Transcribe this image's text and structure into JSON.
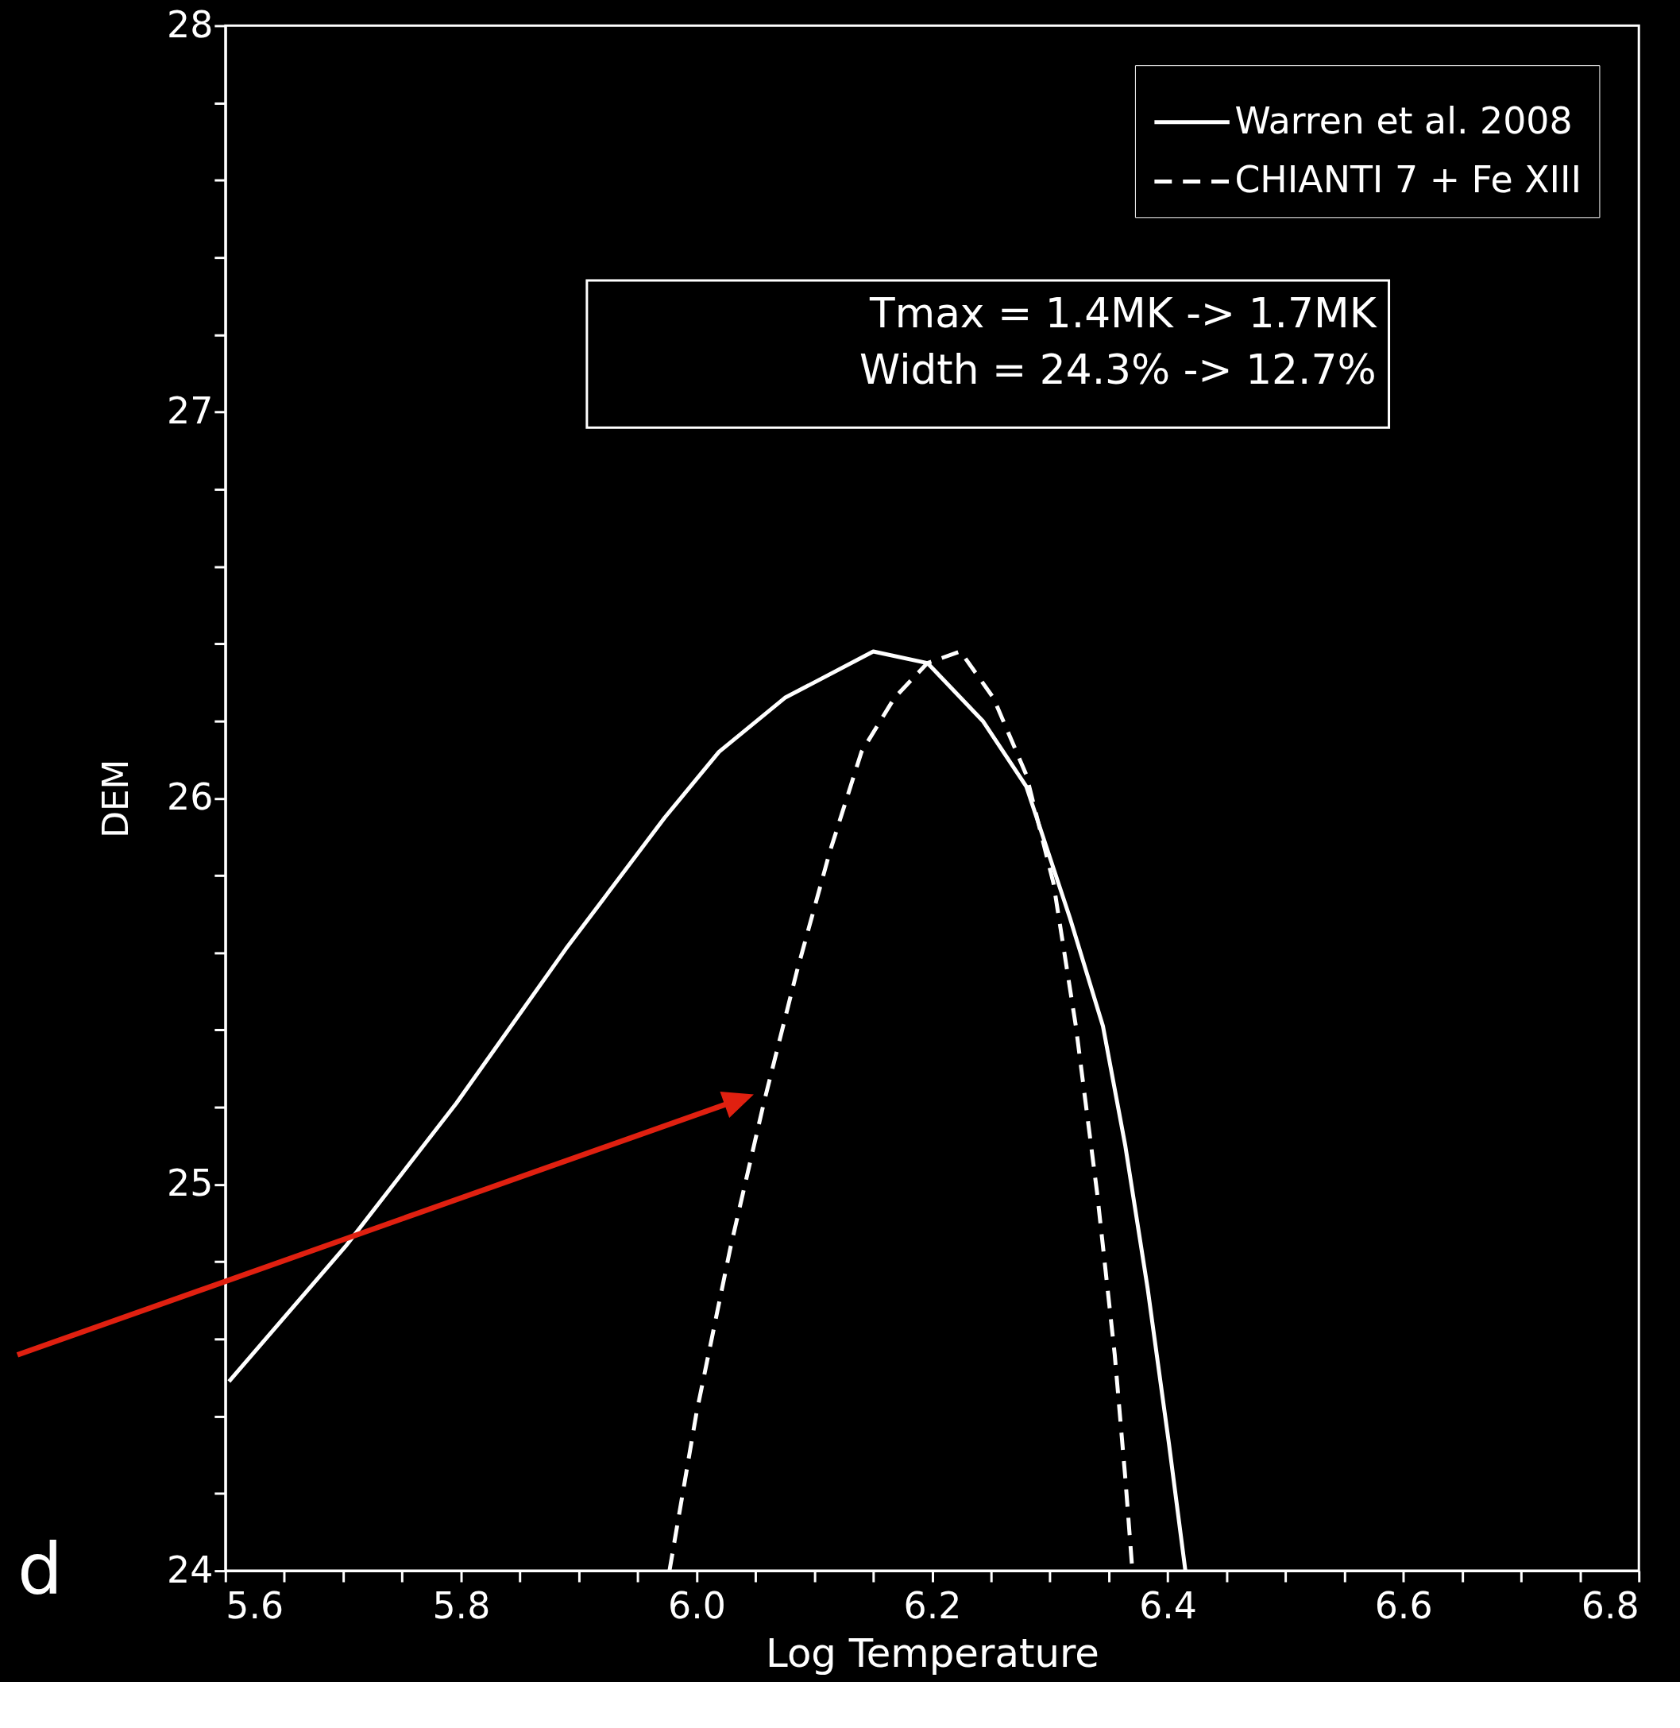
{
  "chart_data": {
    "type": "line",
    "xlabel": "Log Temperature",
    "ylabel": "DEM",
    "xlim": [
      5.6,
      6.8
    ],
    "ylim": [
      24,
      28
    ],
    "xticks": [
      {
        "value": 5.6,
        "label": "5.6"
      },
      {
        "value": 5.65,
        "label": null
      },
      {
        "value": 5.7,
        "label": null
      },
      {
        "value": 5.75,
        "label": null
      },
      {
        "value": 5.8,
        "label": "5.8"
      },
      {
        "value": 5.85,
        "label": null
      },
      {
        "value": 5.9,
        "label": null
      },
      {
        "value": 5.95,
        "label": null
      },
      {
        "value": 6.0,
        "label": "6.0"
      },
      {
        "value": 6.05,
        "label": null
      },
      {
        "value": 6.1,
        "label": null
      },
      {
        "value": 6.15,
        "label": null
      },
      {
        "value": 6.2,
        "label": "6.2"
      },
      {
        "value": 6.25,
        "label": null
      },
      {
        "value": 6.3,
        "label": null
      },
      {
        "value": 6.35,
        "label": null
      },
      {
        "value": 6.4,
        "label": "6.4"
      },
      {
        "value": 6.45,
        "label": null
      },
      {
        "value": 6.5,
        "label": null
      },
      {
        "value": 6.55,
        "label": null
      },
      {
        "value": 6.6,
        "label": "6.6"
      },
      {
        "value": 6.65,
        "label": null
      },
      {
        "value": 6.7,
        "label": null
      },
      {
        "value": 6.75,
        "label": null
      },
      {
        "value": 6.8,
        "label": "6.8"
      }
    ],
    "yticks": [
      24,
      {
        "value": 24.2,
        "label": null
      },
      {
        "value": 24.4,
        "label": null
      },
      {
        "value": 24.6,
        "label": null
      },
      {
        "value": 24.8,
        "label": null
      },
      25,
      {
        "value": 25.2,
        "label": null
      },
      {
        "value": 25.4,
        "label": null
      },
      {
        "value": 25.6,
        "label": null
      },
      {
        "value": 25.8,
        "label": null
      },
      26,
      {
        "value": 26.2,
        "label": null
      },
      {
        "value": 26.4,
        "label": null
      },
      {
        "value": 26.6,
        "label": null
      },
      {
        "value": 26.8,
        "label": null
      },
      27,
      {
        "value": 27.2,
        "label": null
      },
      {
        "value": 27.4,
        "label": null
      },
      {
        "value": 27.6,
        "label": null
      },
      {
        "value": 27.8,
        "label": null
      },
      28
    ],
    "grid": false,
    "legend": "top right",
    "series": [
      {
        "name": "Warren et al. 2008",
        "color": "#ffffff",
        "line_style": "solid",
        "x": [
          5.603,
          5.702,
          5.796,
          5.889,
          5.973,
          6.019,
          6.075,
          6.15,
          6.196,
          6.243,
          6.28,
          6.317,
          6.345,
          6.364,
          6.383,
          6.401,
          6.415
        ],
        "values": [
          24.49,
          24.84,
          25.21,
          25.61,
          25.95,
          26.12,
          26.26,
          26.38,
          26.35,
          26.2,
          26.03,
          25.69,
          25.41,
          25.1,
          24.73,
          24.33,
          24.0
        ]
      },
      {
        "name": "CHIANTI 7 + Fe XIII",
        "color": "#ffffff",
        "line_style": "dashed",
        "x": [
          5.977,
          6.0,
          6.029,
          6.057,
          6.085,
          6.113,
          6.14,
          6.168,
          6.196,
          6.224,
          6.252,
          6.28,
          6.303,
          6.322,
          6.34,
          6.355,
          6.364,
          6.37
        ],
        "values": [
          24.0,
          24.41,
          24.84,
          25.21,
          25.55,
          25.86,
          26.12,
          26.26,
          26.35,
          26.38,
          26.26,
          26.06,
          25.78,
          25.41,
          24.98,
          24.56,
          24.24,
          24.0
        ]
      }
    ],
    "annotations": [
      "Tmax = 1.4MK -> 1.7MK\nWidth = 24.3% -> 12.7%",
      "d"
    ]
  }
}
